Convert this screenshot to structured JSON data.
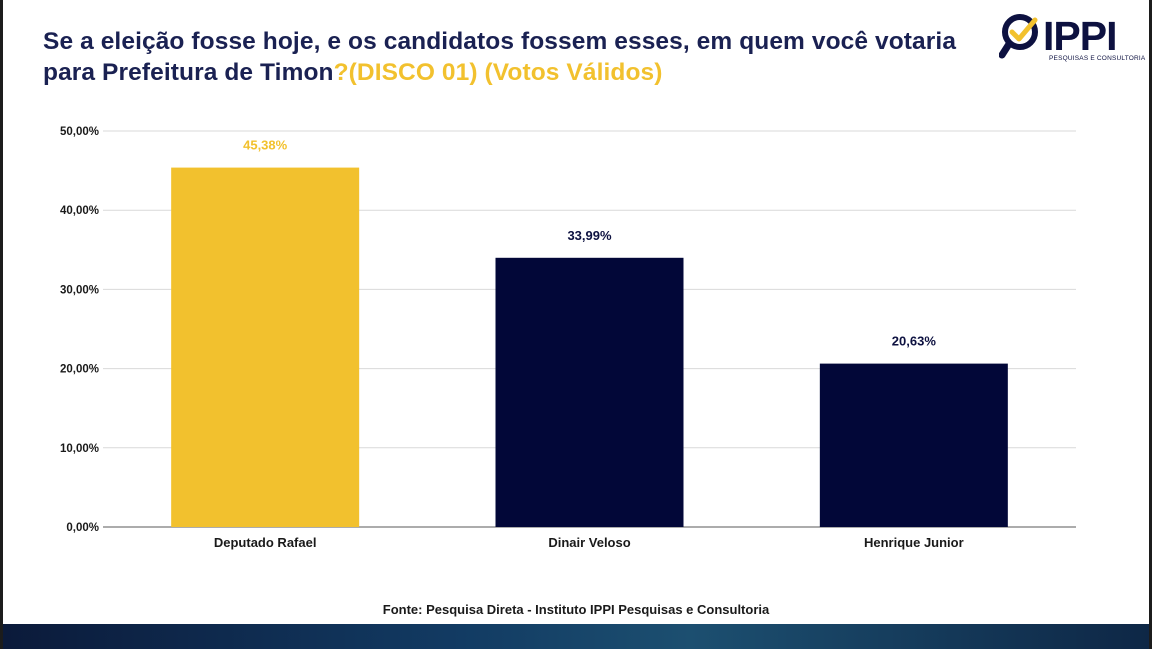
{
  "title": {
    "main": "Se a eleição fosse hoje, e os candidatos fossem esses, em quem você votaria para Prefeitura de Timon",
    "highlight": "?(DISCO 01) (Votos Válidos)"
  },
  "logo": {
    "text": "IPPI",
    "subtitle": "PESQUISAS E CONSULTORIA",
    "icon": "magnifier-check-icon"
  },
  "source": "Fonte: Pesquisa Direta - Instituto IPPI Pesquisas e Consultoria",
  "colors": {
    "accent": "#f2c12e",
    "navy": "#020738",
    "title": "#1a2152"
  },
  "chart_data": {
    "type": "bar",
    "categories": [
      "Deputado Rafael",
      "Dinair Veloso",
      "Henrique Junior"
    ],
    "values": [
      45.38,
      33.99,
      20.63
    ],
    "value_labels": [
      "45,38%",
      "33,99%",
      "20,63%"
    ],
    "bar_colors": [
      "#f2c12e",
      "#020738",
      "#020738"
    ],
    "label_colors": [
      "#f2c12e",
      "#0d1140",
      "#0d1140"
    ],
    "ylim": [
      0,
      50
    ],
    "yticks": [
      0,
      10,
      20,
      30,
      40,
      50
    ],
    "ytick_labels": [
      "0,00%",
      "10,00%",
      "20,00%",
      "30,00%",
      "40,00%",
      "50,00%"
    ],
    "grid": true,
    "legend": "none"
  }
}
